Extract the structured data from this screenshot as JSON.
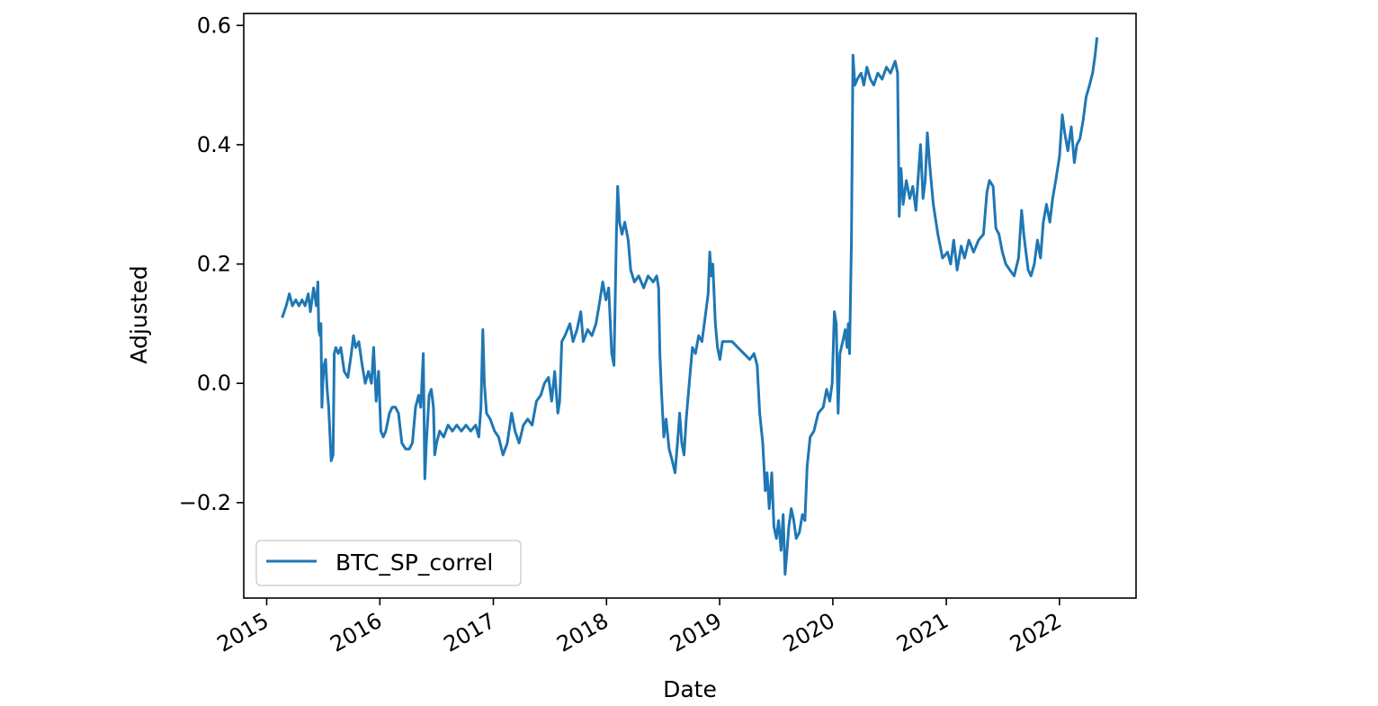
{
  "chart_data": {
    "type": "line",
    "title": "",
    "xlabel": "Date",
    "ylabel": "Adjusted",
    "x_ticks": [
      "2015",
      "2016",
      "2017",
      "2018",
      "2019",
      "2020",
      "2021",
      "2022"
    ],
    "y_ticks": [
      "−0.2",
      "0.0",
      "0.2",
      "0.4",
      "0.6"
    ],
    "xlim": [
      "2014-10-19",
      "2022-09-05"
    ],
    "ylim": [
      -0.36,
      0.62
    ],
    "grid": false,
    "legend_location": "lower-left",
    "color": "#1f77b4",
    "series": [
      {
        "name": "BTC_SP_correl",
        "points": [
          [
            "2015-02-20",
            0.11
          ],
          [
            "2015-03-05",
            0.13
          ],
          [
            "2015-03-15",
            0.15
          ],
          [
            "2015-03-25",
            0.13
          ],
          [
            "2015-04-05",
            0.14
          ],
          [
            "2015-04-15",
            0.13
          ],
          [
            "2015-04-25",
            0.14
          ],
          [
            "2015-05-05",
            0.13
          ],
          [
            "2015-05-15",
            0.15
          ],
          [
            "2015-05-22",
            0.12
          ],
          [
            "2015-06-01",
            0.16
          ],
          [
            "2015-06-10",
            0.13
          ],
          [
            "2015-06-15",
            0.17
          ],
          [
            "2015-06-18",
            0.09
          ],
          [
            "2015-06-22",
            0.08
          ],
          [
            "2015-06-25",
            0.1
          ],
          [
            "2015-06-28",
            -0.04
          ],
          [
            "2015-07-01",
            0.0
          ],
          [
            "2015-07-05",
            0.03
          ],
          [
            "2015-07-10",
            0.04
          ],
          [
            "2015-07-15",
            -0.01
          ],
          [
            "2015-07-20",
            -0.04
          ],
          [
            "2015-07-28",
            -0.13
          ],
          [
            "2015-08-03",
            -0.12
          ],
          [
            "2015-08-07",
            0.05
          ],
          [
            "2015-08-12",
            0.06
          ],
          [
            "2015-08-20",
            0.05
          ],
          [
            "2015-08-28",
            0.06
          ],
          [
            "2015-09-08",
            0.02
          ],
          [
            "2015-09-20",
            0.01
          ],
          [
            "2015-10-01",
            0.05
          ],
          [
            "2015-10-08",
            0.08
          ],
          [
            "2015-10-15",
            0.06
          ],
          [
            "2015-10-25",
            0.07
          ],
          [
            "2015-11-05",
            0.03
          ],
          [
            "2015-11-15",
            0.0
          ],
          [
            "2015-11-25",
            0.02
          ],
          [
            "2015-12-05",
            0.0
          ],
          [
            "2015-12-12",
            0.06
          ],
          [
            "2015-12-20",
            -0.03
          ],
          [
            "2015-12-28",
            0.02
          ],
          [
            "2016-01-04",
            -0.08
          ],
          [
            "2016-01-12",
            -0.09
          ],
          [
            "2016-01-20",
            -0.08
          ],
          [
            "2016-02-01",
            -0.05
          ],
          [
            "2016-02-10",
            -0.04
          ],
          [
            "2016-02-20",
            -0.04
          ],
          [
            "2016-03-01",
            -0.05
          ],
          [
            "2016-03-12",
            -0.1
          ],
          [
            "2016-03-24",
            -0.11
          ],
          [
            "2016-04-05",
            -0.11
          ],
          [
            "2016-04-15",
            -0.1
          ],
          [
            "2016-04-25",
            -0.04
          ],
          [
            "2016-05-05",
            -0.02
          ],
          [
            "2016-05-12",
            -0.04
          ],
          [
            "2016-05-20",
            0.05
          ],
          [
            "2016-05-25",
            -0.16
          ],
          [
            "2016-05-30",
            -0.1
          ],
          [
            "2016-06-08",
            -0.02
          ],
          [
            "2016-06-15",
            -0.01
          ],
          [
            "2016-06-22",
            -0.04
          ],
          [
            "2016-06-26",
            -0.12
          ],
          [
            "2016-07-02",
            -0.1
          ],
          [
            "2016-07-12",
            -0.08
          ],
          [
            "2016-07-25",
            -0.09
          ],
          [
            "2016-08-08",
            -0.07
          ],
          [
            "2016-08-22",
            -0.08
          ],
          [
            "2016-09-05",
            -0.07
          ],
          [
            "2016-09-20",
            -0.08
          ],
          [
            "2016-10-05",
            -0.07
          ],
          [
            "2016-10-20",
            -0.08
          ],
          [
            "2016-11-05",
            -0.07
          ],
          [
            "2016-11-15",
            -0.09
          ],
          [
            "2016-11-22",
            -0.04
          ],
          [
            "2016-11-28",
            0.09
          ],
          [
            "2016-12-03",
            0.0
          ],
          [
            "2016-12-10",
            -0.05
          ],
          [
            "2016-12-22",
            -0.06
          ],
          [
            "2017-01-05",
            -0.08
          ],
          [
            "2017-01-18",
            -0.09
          ],
          [
            "2017-02-01",
            -0.12
          ],
          [
            "2017-02-15",
            -0.1
          ],
          [
            "2017-03-01",
            -0.05
          ],
          [
            "2017-03-12",
            -0.08
          ],
          [
            "2017-03-25",
            -0.1
          ],
          [
            "2017-04-08",
            -0.07
          ],
          [
            "2017-04-22",
            -0.06
          ],
          [
            "2017-05-06",
            -0.07
          ],
          [
            "2017-05-20",
            -0.03
          ],
          [
            "2017-06-03",
            -0.02
          ],
          [
            "2017-06-15",
            0.0
          ],
          [
            "2017-06-28",
            0.01
          ],
          [
            "2017-07-08",
            -0.03
          ],
          [
            "2017-07-18",
            0.02
          ],
          [
            "2017-07-28",
            -0.05
          ],
          [
            "2017-08-03",
            -0.03
          ],
          [
            "2017-08-10",
            0.07
          ],
          [
            "2017-08-20",
            0.08
          ],
          [
            "2017-09-05",
            0.1
          ],
          [
            "2017-09-15",
            0.07
          ],
          [
            "2017-09-28",
            0.09
          ],
          [
            "2017-10-10",
            0.12
          ],
          [
            "2017-10-18",
            0.07
          ],
          [
            "2017-11-01",
            0.09
          ],
          [
            "2017-11-15",
            0.08
          ],
          [
            "2017-11-28",
            0.1
          ],
          [
            "2017-12-08",
            0.13
          ],
          [
            "2017-12-20",
            0.17
          ],
          [
            "2017-12-30",
            0.14
          ],
          [
            "2018-01-08",
            0.16
          ],
          [
            "2018-01-18",
            0.05
          ],
          [
            "2018-01-25",
            0.03
          ],
          [
            "2018-02-02",
            0.25
          ],
          [
            "2018-02-06",
            0.33
          ],
          [
            "2018-02-12",
            0.27
          ],
          [
            "2018-02-20",
            0.25
          ],
          [
            "2018-03-01",
            0.27
          ],
          [
            "2018-03-12",
            0.24
          ],
          [
            "2018-03-20",
            0.19
          ],
          [
            "2018-04-01",
            0.17
          ],
          [
            "2018-04-15",
            0.18
          ],
          [
            "2018-05-01",
            0.16
          ],
          [
            "2018-05-15",
            0.18
          ],
          [
            "2018-06-01",
            0.17
          ],
          [
            "2018-06-12",
            0.18
          ],
          [
            "2018-06-18",
            0.16
          ],
          [
            "2018-06-22",
            0.05
          ],
          [
            "2018-06-27",
            -0.01
          ],
          [
            "2018-07-05",
            -0.09
          ],
          [
            "2018-07-12",
            -0.06
          ],
          [
            "2018-07-22",
            -0.11
          ],
          [
            "2018-08-01",
            -0.13
          ],
          [
            "2018-08-10",
            -0.15
          ],
          [
            "2018-08-18",
            -0.1
          ],
          [
            "2018-08-25",
            -0.05
          ],
          [
            "2018-09-01",
            -0.1
          ],
          [
            "2018-09-08",
            -0.12
          ],
          [
            "2018-09-15",
            -0.06
          ],
          [
            "2018-09-25",
            0.0
          ],
          [
            "2018-10-05",
            0.06
          ],
          [
            "2018-10-15",
            0.05
          ],
          [
            "2018-10-25",
            0.08
          ],
          [
            "2018-11-05",
            0.07
          ],
          [
            "2018-11-15",
            0.11
          ],
          [
            "2018-11-25",
            0.15
          ],
          [
            "2018-11-30",
            0.22
          ],
          [
            "2018-12-05",
            0.18
          ],
          [
            "2018-12-10",
            0.2
          ],
          [
            "2018-12-18",
            0.1
          ],
          [
            "2018-12-25",
            0.06
          ],
          [
            "2019-01-02",
            0.04
          ],
          [
            "2019-01-10",
            0.07
          ],
          [
            "2019-01-25",
            0.07
          ],
          [
            "2019-02-10",
            0.07
          ],
          [
            "2019-03-01",
            0.06
          ],
          [
            "2019-03-20",
            0.05
          ],
          [
            "2019-04-08",
            0.04
          ],
          [
            "2019-04-22",
            0.05
          ],
          [
            "2019-05-02",
            0.03
          ],
          [
            "2019-05-10",
            -0.05
          ],
          [
            "2019-05-20",
            -0.1
          ],
          [
            "2019-05-28",
            -0.18
          ],
          [
            "2019-06-03",
            -0.15
          ],
          [
            "2019-06-10",
            -0.21
          ],
          [
            "2019-06-18",
            -0.15
          ],
          [
            "2019-06-25",
            -0.24
          ],
          [
            "2019-07-03",
            -0.26
          ],
          [
            "2019-07-10",
            -0.23
          ],
          [
            "2019-07-18",
            -0.28
          ],
          [
            "2019-07-25",
            -0.22
          ],
          [
            "2019-07-31",
            -0.32
          ],
          [
            "2019-08-05",
            -0.29
          ],
          [
            "2019-08-12",
            -0.24
          ],
          [
            "2019-08-20",
            -0.21
          ],
          [
            "2019-08-28",
            -0.23
          ],
          [
            "2019-09-05",
            -0.26
          ],
          [
            "2019-09-15",
            -0.25
          ],
          [
            "2019-09-25",
            -0.22
          ],
          [
            "2019-10-03",
            -0.23
          ],
          [
            "2019-10-10",
            -0.14
          ],
          [
            "2019-10-20",
            -0.09
          ],
          [
            "2019-11-01",
            -0.08
          ],
          [
            "2019-11-15",
            -0.05
          ],
          [
            "2019-12-01",
            -0.04
          ],
          [
            "2019-12-12",
            -0.01
          ],
          [
            "2019-12-22",
            -0.03
          ],
          [
            "2019-12-30",
            0.0
          ],
          [
            "2020-01-06",
            0.12
          ],
          [
            "2020-01-12",
            0.1
          ],
          [
            "2020-01-18",
            -0.05
          ],
          [
            "2020-01-24",
            0.05
          ],
          [
            "2020-02-02",
            0.07
          ],
          [
            "2020-02-10",
            0.09
          ],
          [
            "2020-02-16",
            0.06
          ],
          [
            "2020-02-20",
            0.1
          ],
          [
            "2020-02-24",
            0.05
          ],
          [
            "2020-03-01",
            0.24
          ],
          [
            "2020-03-06",
            0.55
          ],
          [
            "2020-03-12",
            0.5
          ],
          [
            "2020-03-20",
            0.51
          ],
          [
            "2020-04-01",
            0.52
          ],
          [
            "2020-04-10",
            0.5
          ],
          [
            "2020-04-20",
            0.53
          ],
          [
            "2020-05-01",
            0.51
          ],
          [
            "2020-05-12",
            0.5
          ],
          [
            "2020-05-25",
            0.52
          ],
          [
            "2020-06-08",
            0.51
          ],
          [
            "2020-06-22",
            0.53
          ],
          [
            "2020-07-05",
            0.52
          ],
          [
            "2020-07-20",
            0.54
          ],
          [
            "2020-07-28",
            0.52
          ],
          [
            "2020-08-02",
            0.28
          ],
          [
            "2020-08-08",
            0.36
          ],
          [
            "2020-08-15",
            0.3
          ],
          [
            "2020-08-25",
            0.34
          ],
          [
            "2020-09-05",
            0.31
          ],
          [
            "2020-09-15",
            0.33
          ],
          [
            "2020-09-25",
            0.29
          ],
          [
            "2020-10-03",
            0.35
          ],
          [
            "2020-10-10",
            0.4
          ],
          [
            "2020-10-18",
            0.31
          ],
          [
            "2020-10-25",
            0.34
          ],
          [
            "2020-11-01",
            0.42
          ],
          [
            "2020-11-08",
            0.37
          ],
          [
            "2020-11-20",
            0.3
          ],
          [
            "2020-12-05",
            0.25
          ],
          [
            "2020-12-20",
            0.21
          ],
          [
            "2021-01-05",
            0.22
          ],
          [
            "2021-01-15",
            0.2
          ],
          [
            "2021-01-25",
            0.24
          ],
          [
            "2021-02-05",
            0.19
          ],
          [
            "2021-02-18",
            0.23
          ],
          [
            "2021-03-01",
            0.21
          ],
          [
            "2021-03-15",
            0.24
          ],
          [
            "2021-03-30",
            0.22
          ],
          [
            "2021-04-15",
            0.24
          ],
          [
            "2021-05-01",
            0.25
          ],
          [
            "2021-05-12",
            0.32
          ],
          [
            "2021-05-20",
            0.34
          ],
          [
            "2021-06-01",
            0.33
          ],
          [
            "2021-06-10",
            0.26
          ],
          [
            "2021-06-20",
            0.25
          ],
          [
            "2021-07-01",
            0.22
          ],
          [
            "2021-07-12",
            0.2
          ],
          [
            "2021-07-25",
            0.19
          ],
          [
            "2021-08-08",
            0.18
          ],
          [
            "2021-08-22",
            0.21
          ],
          [
            "2021-09-01",
            0.29
          ],
          [
            "2021-09-08",
            0.25
          ],
          [
            "2021-09-15",
            0.22
          ],
          [
            "2021-09-22",
            0.19
          ],
          [
            "2021-10-01",
            0.18
          ],
          [
            "2021-10-12",
            0.2
          ],
          [
            "2021-10-22",
            0.24
          ],
          [
            "2021-11-01",
            0.21
          ],
          [
            "2021-11-10",
            0.27
          ],
          [
            "2021-11-20",
            0.3
          ],
          [
            "2021-12-01",
            0.27
          ],
          [
            "2021-12-10",
            0.31
          ],
          [
            "2021-12-20",
            0.34
          ],
          [
            "2022-01-01",
            0.38
          ],
          [
            "2022-01-10",
            0.45
          ],
          [
            "2022-01-18",
            0.42
          ],
          [
            "2022-01-28",
            0.39
          ],
          [
            "2022-02-08",
            0.43
          ],
          [
            "2022-02-18",
            0.37
          ],
          [
            "2022-02-26",
            0.4
          ],
          [
            "2022-03-08",
            0.41
          ],
          [
            "2022-03-18",
            0.44
          ],
          [
            "2022-03-28",
            0.48
          ],
          [
            "2022-04-08",
            0.5
          ],
          [
            "2022-04-18",
            0.52
          ],
          [
            "2022-04-26",
            0.55
          ],
          [
            "2022-05-02",
            0.58
          ]
        ]
      }
    ]
  }
}
